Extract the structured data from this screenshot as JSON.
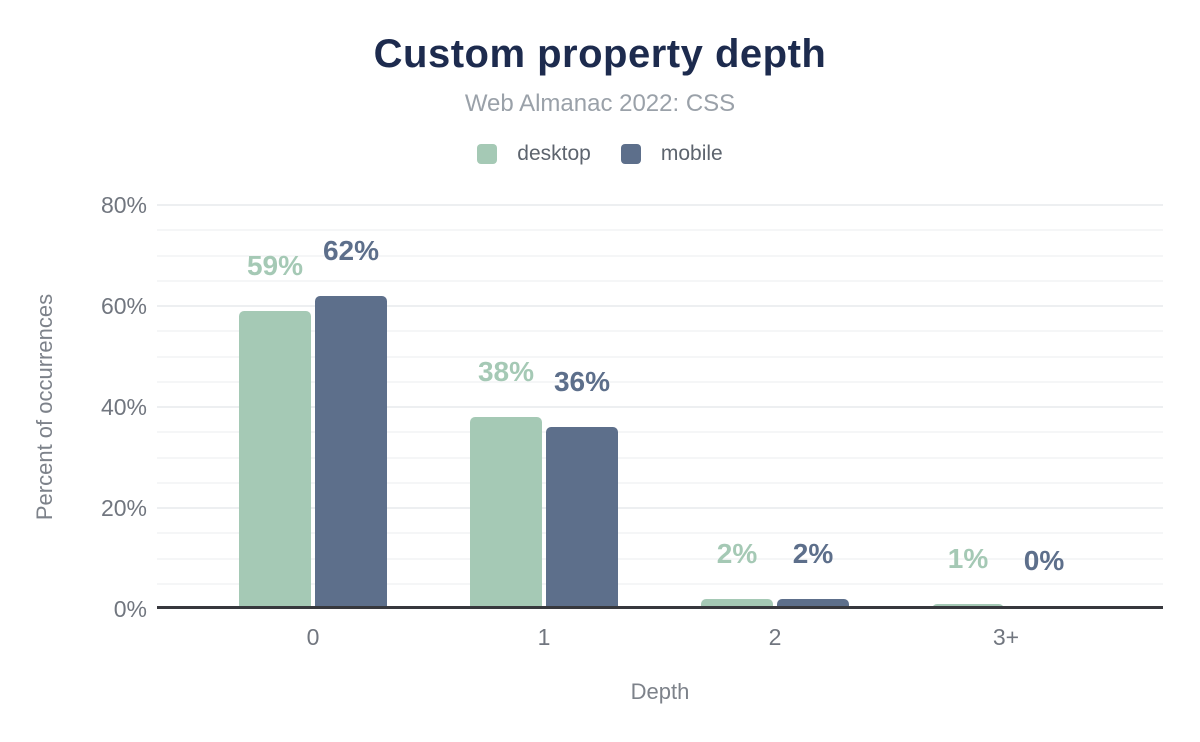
{
  "header": {
    "title": "Custom property depth",
    "subtitle": "Web Almanac 2022: CSS"
  },
  "chart_data": {
    "type": "bar",
    "title": "Custom property depth",
    "subtitle": "Web Almanac 2022: CSS",
    "categories": [
      "0",
      "1",
      "2",
      "3+"
    ],
    "series": [
      {
        "name": "desktop",
        "color": "#a5c9b5",
        "values": [
          59,
          38,
          2,
          1
        ],
        "labels": [
          "59%",
          "38%",
          "2%",
          "1%"
        ]
      },
      {
        "name": "mobile",
        "color": "#5d6f8b",
        "values": [
          62,
          36,
          2,
          0
        ],
        "labels": [
          "62%",
          "36%",
          "2%",
          "0%"
        ]
      }
    ],
    "xlabel": "Depth",
    "ylabel": "Percent of occurrences",
    "ylim": [
      0,
      80
    ],
    "yticks": {
      "values": [
        0,
        20,
        40,
        60,
        80
      ],
      "labels": [
        "0%",
        "20%",
        "40%",
        "60%",
        "80%"
      ]
    },
    "grid": {
      "minor_step": 5,
      "major_step": 20,
      "visible": true
    },
    "legend_position": "top"
  },
  "colors": {
    "background": "#ffffff",
    "title": "#1d2b4e",
    "subtitle": "#9aa1a9",
    "legend_text": "#5d646e",
    "tick_text": "#71767f",
    "axis_title_text": "#7d828a",
    "axis_line": "#37383d",
    "grid_major": "#edeff1",
    "grid_minor": "#f5f6f7"
  }
}
